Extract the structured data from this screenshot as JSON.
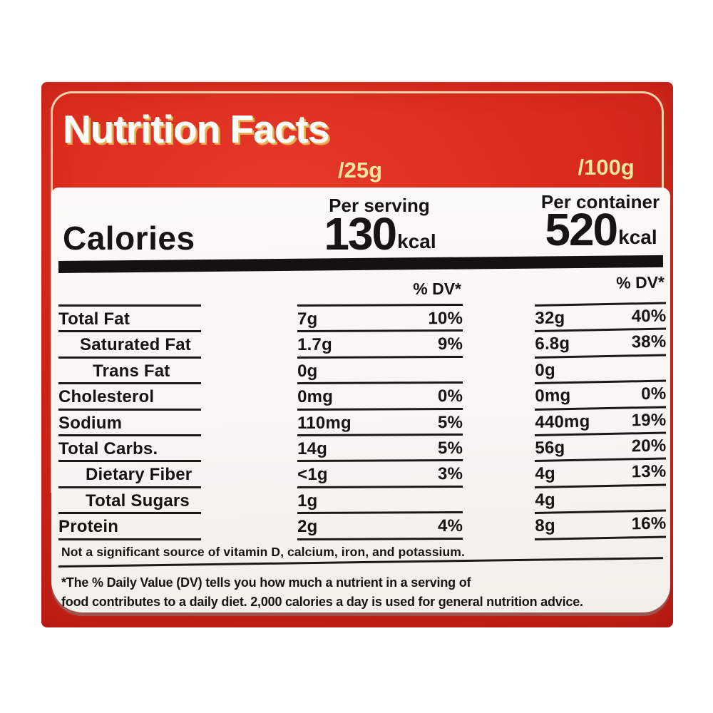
{
  "label": {
    "title": "Nutrition Facts",
    "serving_size": "/25g",
    "container_size": "/100g",
    "per_serving_header": "Per serving",
    "per_container_header": "Per container",
    "calories_label": "Calories",
    "calories_per_serving": "130",
    "calories_per_container": "520",
    "kcal_unit": "kcal",
    "dv_header": "% DV*",
    "rows": [
      {
        "name": "Total Fat",
        "indent": 0,
        "serving_amount": "7g",
        "serving_dv": "10%",
        "container_amount": "32g",
        "container_dv": "40%"
      },
      {
        "name": "Saturated Fat",
        "indent": 1,
        "serving_amount": "1.7g",
        "serving_dv": "9%",
        "container_amount": "6.8g",
        "container_dv": "38%"
      },
      {
        "name": "Trans Fat",
        "indent": 3,
        "serving_amount": "0g",
        "serving_dv": "",
        "container_amount": "0g",
        "container_dv": ""
      },
      {
        "name": "Cholesterol",
        "indent": 0,
        "serving_amount": "0mg",
        "serving_dv": "0%",
        "container_amount": "0mg",
        "container_dv": "0%"
      },
      {
        "name": "Sodium",
        "indent": 0,
        "serving_amount": "110mg",
        "serving_dv": "5%",
        "container_amount": "440mg",
        "container_dv": "19%"
      },
      {
        "name": "Total Carbs.",
        "indent": 0,
        "serving_amount": "14g",
        "serving_dv": "5%",
        "container_amount": "56g",
        "container_dv": "20%"
      },
      {
        "name": "Dietary Fiber",
        "indent": 2,
        "serving_amount": "<1g",
        "serving_dv": "3%",
        "container_amount": "4g",
        "container_dv": "13%"
      },
      {
        "name": "Total Sugars",
        "indent": 2,
        "serving_amount": "1g",
        "serving_dv": "",
        "container_amount": "4g",
        "container_dv": ""
      },
      {
        "name": "Protein",
        "indent": 0,
        "serving_amount": "2g",
        "serving_dv": "4%",
        "container_amount": "8g",
        "container_dv": "16%"
      }
    ],
    "not_significant_note": "Not a significant source of vitamin D, calcium, iron, and potassium.",
    "footnote_line1": "*The % Daily Value (DV) tells you how much a nutrient in a serving of",
    "footnote_line2": "food contributes to a daily diet. 2,000 calories a day is used  for general nutrition advice.",
    "colors": {
      "package_red": "#d92a1d",
      "accent_cream": "#f1e69e",
      "panel_white": "#f8f6f2",
      "text_black": "#171512"
    }
  }
}
